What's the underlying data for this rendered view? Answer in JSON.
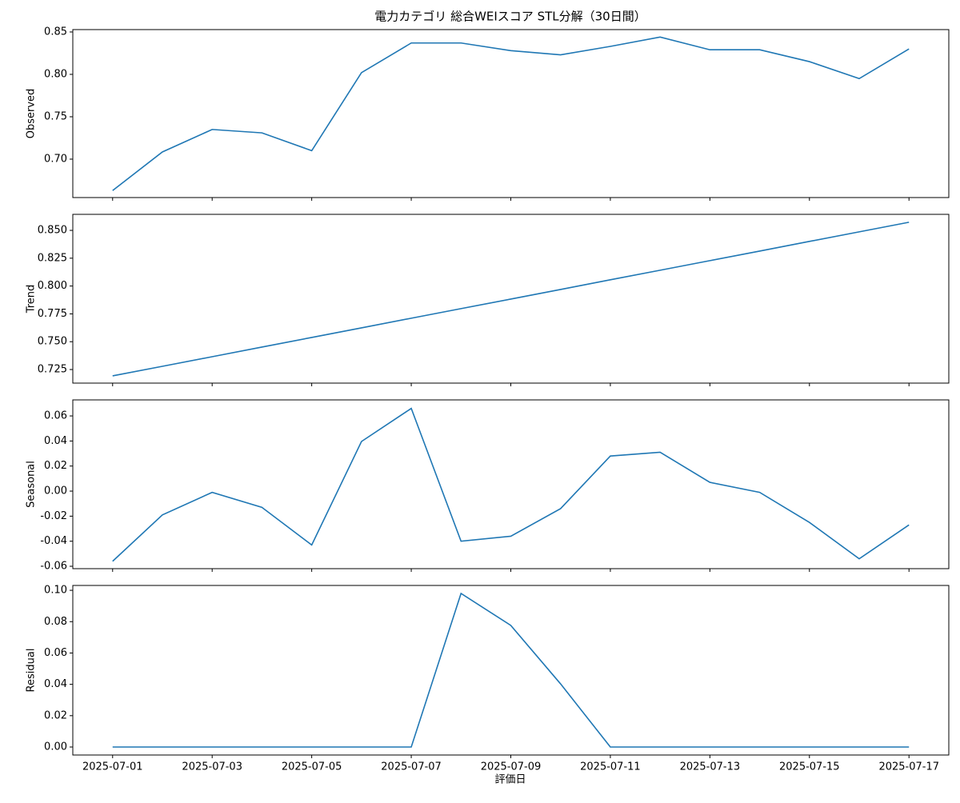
{
  "chart_data": [
    {
      "type": "line",
      "title": "電力カテゴリ 総合WEIスコア STL分解（30日間）",
      "ylabel": "Observed",
      "color": "#1f77b4",
      "values": [
        0.663,
        0.7085,
        0.735,
        0.731,
        0.71,
        0.802,
        0.837,
        0.837,
        0.828,
        0.823,
        0.833,
        0.844,
        0.829,
        0.829,
        0.815,
        0.795,
        0.83
      ],
      "ylim": [
        0.6547,
        0.8528
      ],
      "yticks": [
        {
          "value": 0.7,
          "label": "0.70"
        },
        0.75,
        {
          "value": 0.8,
          "label": "0.80"
        },
        0.85
      ]
    },
    {
      "type": "line",
      "ylabel": "Trend",
      "color": "#1f77b4",
      "values": [
        0.7193,
        0.7279,
        0.7365,
        0.7452,
        0.7538,
        0.7624,
        0.7711,
        0.7797,
        0.7883,
        0.7969,
        0.8056,
        0.8142,
        0.8228,
        0.8314,
        0.8401,
        0.8487,
        0.8573
      ],
      "ylim": [
        0.7128,
        0.8644
      ],
      "yticks": [
        0.725,
        {
          "value": 0.75,
          "label": "0.750"
        },
        0.775,
        {
          "value": 0.8,
          "label": "0.800"
        },
        0.825,
        {
          "value": 0.85,
          "label": "0.850"
        }
      ]
    },
    {
      "type": "line",
      "ylabel": "Seasonal",
      "color": "#1f77b4",
      "values": [
        -0.056,
        -0.019,
        -0.001,
        -0.013,
        -0.043,
        0.0396,
        0.066,
        -0.04,
        -0.036,
        -0.014,
        0.028,
        0.031,
        0.007,
        -0.001,
        -0.025,
        -0.054,
        -0.027
      ],
      "ylim": [
        -0.0619,
        0.0728
      ],
      "yticks": [
        -0.06,
        -0.04,
        -0.02,
        {
          "value": 0,
          "label": "0.00"
        },
        0.02,
        0.04,
        0.06
      ]
    },
    {
      "type": "line",
      "ylabel": "Residual",
      "xlabel": "評価日",
      "color": "#1f77b4",
      "x": [
        "2025-07-01",
        "2025-07-02",
        "2025-07-03",
        "2025-07-04",
        "2025-07-05",
        "2025-07-06",
        "2025-07-07",
        "2025-07-08",
        "2025-07-09",
        "2025-07-10",
        "2025-07-11",
        "2025-07-12",
        "2025-07-13",
        "2025-07-14",
        "2025-07-15",
        "2025-07-16",
        "2025-07-17"
      ],
      "values": [
        0,
        0,
        0,
        0,
        0,
        0,
        0,
        0.098,
        0.0776,
        0.0403,
        0,
        0,
        0,
        0,
        0,
        0,
        0
      ],
      "xlim": [
        "2025-06-30T04:48",
        "2025-07-17T19:12"
      ],
      "xticks": [
        "2025-07-01",
        "2025-07-03",
        "2025-07-05",
        "2025-07-07",
        "2025-07-09",
        "2025-07-11",
        "2025-07-13",
        "2025-07-15",
        "2025-07-17"
      ],
      "ylim": [
        -0.0051,
        0.1031
      ],
      "yticks": [
        {
          "value": 0,
          "label": "0.00"
        },
        0.02,
        0.04,
        0.06,
        0.08,
        {
          "value": 0.1,
          "label": "0.10"
        }
      ]
    }
  ]
}
